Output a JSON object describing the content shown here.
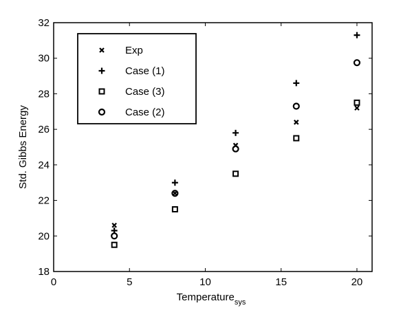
{
  "chart_data": {
    "type": "scatter",
    "xlabel": "Temperature",
    "xlabel_subscript": "sys",
    "ylabel": "Std. Gibbs Energy",
    "xlim": [
      0,
      21
    ],
    "ylim": [
      18,
      32
    ],
    "xticks": [
      0,
      5,
      10,
      15,
      20
    ],
    "yticks": [
      18,
      20,
      22,
      24,
      26,
      28,
      30,
      32
    ],
    "grid": false,
    "legend_position": "top-left",
    "series": [
      {
        "name": "Exp",
        "marker": "x",
        "color": "#000000",
        "x": [
          4,
          8,
          12,
          16,
          20
        ],
        "y": [
          20.6,
          22.4,
          25.1,
          26.4,
          27.2
        ]
      },
      {
        "name": "Case (1)",
        "marker": "plus",
        "color": "#000000",
        "x": [
          4,
          8,
          12,
          16,
          20
        ],
        "y": [
          20.3,
          23.0,
          25.8,
          28.6,
          31.3
        ]
      },
      {
        "name": "Case (3)",
        "marker": "square",
        "color": "#000000",
        "x": [
          4,
          8,
          12,
          16,
          20
        ],
        "y": [
          19.5,
          21.5,
          23.5,
          25.5,
          27.5
        ]
      },
      {
        "name": "Case (2)",
        "marker": "circle",
        "color": "#000000",
        "x": [
          4,
          8,
          12,
          16,
          20
        ],
        "y": [
          20.0,
          22.4,
          24.9,
          27.3,
          29.75
        ]
      }
    ]
  }
}
